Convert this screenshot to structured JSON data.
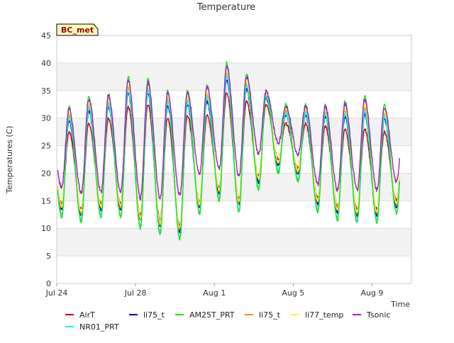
{
  "chart_data": {
    "type": "line",
    "title": "Temperature",
    "xlabel": "Time",
    "ylabel": "Temperatures (C)",
    "badge": "BC_met",
    "ylim": [
      0,
      45
    ],
    "y_ticks": [
      0,
      5,
      10,
      15,
      20,
      25,
      30,
      35,
      40,
      45
    ],
    "x_start_date": "Jul 24",
    "x_range_days": [
      0,
      18
    ],
    "x_ticks": [
      {
        "label": "Jul 24",
        "day": 0
      },
      {
        "label": "Jul 28",
        "day": 4
      },
      {
        "label": "Aug 1",
        "day": 8
      },
      {
        "label": "Aug 5",
        "day": 12
      },
      {
        "label": "Aug 9",
        "day": 16
      }
    ],
    "background_bands": true,
    "legend_position": "bottom",
    "daily_extremes": {
      "days": [
        "Jul 24",
        "Jul 25",
        "Jul 26",
        "Jul 27",
        "Jul 28",
        "Jul 29",
        "Jul 30",
        "Jul 31",
        "Aug 1",
        "Aug 2",
        "Aug 3",
        "Aug 4",
        "Aug 5",
        "Aug 6",
        "Aug 7",
        "Aug 8",
        "Aug 9",
        "Aug 10"
      ],
      "airt_min": [
        14.5,
        13.5,
        14.5,
        14.5,
        12.5,
        11.5,
        10.5,
        15.0,
        17.5,
        15.5,
        19.5,
        22.5,
        21.0,
        15.5,
        14.0,
        13.5,
        13.5,
        15.0
      ],
      "airt_max": [
        27.5,
        29.0,
        30.0,
        32.0,
        32.5,
        30.0,
        30.5,
        30.5,
        34.5,
        33.0,
        32.5,
        29.0,
        29.0,
        28.5,
        28.0,
        28.0,
        27.5,
        26.0
      ],
      "am25t_max": [
        32.0,
        34.0,
        34.5,
        37.5,
        37.0,
        35.0,
        35.0,
        36.0,
        40.0,
        38.0,
        35.0,
        32.5,
        32.5,
        32.5,
        33.0,
        34.0,
        32.5,
        32.5
      ],
      "tsonic_min": [
        17.5,
        16.5,
        16.5,
        16.5,
        15.5,
        15.5,
        16.0,
        20.0,
        21.0,
        19.5,
        23.5,
        25.5,
        23.5,
        18.0,
        17.0,
        17.0,
        17.0,
        18.5
      ]
    },
    "series": [
      {
        "name": "AirT",
        "color": "#cc0000"
      },
      {
        "name": "li75_t",
        "color": "#0000aa"
      },
      {
        "name": "AM25T_PRT",
        "color": "#22dd22"
      },
      {
        "name": "li75_t",
        "color": "#ee9900"
      },
      {
        "name": "li77_temp",
        "color": "#ffee44"
      },
      {
        "name": "Tsonic",
        "color": "#9922cc"
      },
      {
        "name": "NR01_PRT",
        "color": "#22eeee"
      }
    ]
  }
}
